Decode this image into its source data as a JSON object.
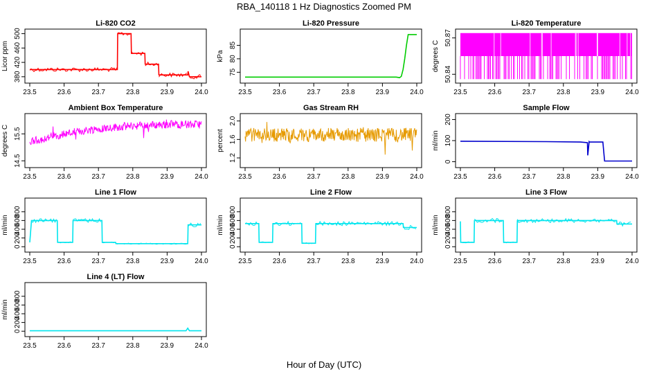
{
  "figure": {
    "title": "RBA_140118  1 Hz Diagnostics Zoomed PM",
    "xlabel": "Hour of Day (UTC)"
  },
  "chart_data": [
    {
      "type": "line",
      "title": "Li-820 CO2",
      "ylabel": "Licor ppm",
      "color": "#ff0000",
      "xlim": [
        23.5,
        24.0
      ],
      "ylim": [
        370,
        505
      ],
      "xticks": [
        "23.5",
        "23.6",
        "23.7",
        "23.8",
        "23.9",
        "24.0"
      ],
      "yticks": [
        {
          "v": 380,
          "label": "380"
        },
        {
          "v": 420,
          "label": "420"
        },
        {
          "v": 460,
          "label": "460"
        },
        {
          "v": 500,
          "label": "500"
        }
      ],
      "style": "step",
      "x": [
        23.5,
        23.755,
        23.756,
        23.795,
        23.796,
        23.835,
        23.836,
        23.875,
        23.876,
        23.96,
        23.961,
        23.965,
        23.966,
        24.0
      ],
      "y": [
        400,
        400,
        500,
        500,
        445,
        445,
        415,
        415,
        385,
        385,
        395,
        380,
        380,
        380
      ]
    },
    {
      "type": "line",
      "title": "Li-820 Pressure",
      "ylabel": "kPa",
      "color": "#00cc00",
      "xlim": [
        23.5,
        24.0
      ],
      "ylim": [
        72,
        90
      ],
      "xticks": [
        "23.5",
        "23.6",
        "23.7",
        "23.8",
        "23.9",
        "24.0"
      ],
      "yticks": [
        {
          "v": 75,
          "label": "75"
        },
        {
          "v": 80,
          "label": "80"
        },
        {
          "v": 85,
          "label": "85"
        }
      ],
      "style": "line",
      "x": [
        23.5,
        23.94,
        23.95,
        23.955,
        23.96,
        23.965,
        23.97,
        23.975,
        24.0
      ],
      "y": [
        73.2,
        73.2,
        73.0,
        73.5,
        76,
        80,
        85,
        89,
        89
      ]
    },
    {
      "type": "line",
      "title": "Li-820 Temperature",
      "ylabel": "degrees C",
      "color": "#ff00ff",
      "xlim": [
        23.5,
        24.0
      ],
      "ylim": [
        50.835,
        50.875
      ],
      "xticks": [
        "23.5",
        "23.6",
        "23.7",
        "23.8",
        "23.9",
        "24.0"
      ],
      "yticks": [
        {
          "v": 50.84,
          "label": "50.84"
        },
        {
          "v": 50.87,
          "label": "50.87"
        }
      ],
      "style": "band",
      "band_low": 50.836,
      "band_high": 50.874,
      "band_mid": 50.855
    },
    {
      "type": "line",
      "title": "Ambient Box Temperature",
      "ylabel": "degrees C",
      "color": "#ff00ff",
      "xlim": [
        23.5,
        24.0
      ],
      "ylim": [
        14.35,
        16.15
      ],
      "xticks": [
        "23.5",
        "23.6",
        "23.7",
        "23.8",
        "23.9",
        "24.0"
      ],
      "yticks": [
        {
          "v": 14.5,
          "label": "14.5"
        },
        {
          "v": 15.5,
          "label": "15.5"
        }
      ],
      "style": "noisy",
      "trend": [
        [
          23.5,
          15.2
        ],
        [
          23.6,
          15.5
        ],
        [
          23.7,
          15.7
        ],
        [
          23.8,
          15.8
        ],
        [
          23.9,
          15.85
        ],
        [
          24.0,
          15.85
        ]
      ],
      "noise": 0.3
    },
    {
      "type": "line",
      "title": "Gas Stream RH",
      "ylabel": "percent",
      "color": "#e69a00",
      "xlim": [
        23.5,
        24.0
      ],
      "ylim": [
        1.05,
        2.1
      ],
      "xticks": [
        "23.5",
        "23.6",
        "23.7",
        "23.8",
        "23.9",
        "24.0"
      ],
      "yticks": [
        {
          "v": 1.2,
          "label": "1.2"
        },
        {
          "v": 1.6,
          "label": "1.6"
        },
        {
          "v": 2.0,
          "label": "2.0"
        }
      ],
      "style": "noisy",
      "trend": [
        [
          23.5,
          1.7
        ],
        [
          24.0,
          1.7
        ]
      ],
      "noise": 0.3
    },
    {
      "type": "line",
      "title": "Sample Flow",
      "ylabel": "ml/min",
      "color": "#0000cc",
      "xlim": [
        23.5,
        24.0
      ],
      "ylim": [
        -15,
        215
      ],
      "xticks": [
        "23.5",
        "23.6",
        "23.7",
        "23.8",
        "23.9",
        "24.0"
      ],
      "yticks": [
        {
          "v": 0,
          "label": "0"
        },
        {
          "v": 100,
          "label": "100"
        },
        {
          "v": 200,
          "label": "200"
        }
      ],
      "style": "line",
      "x": [
        23.5,
        23.75,
        23.85,
        23.87,
        23.871,
        23.875,
        23.876,
        23.915,
        23.92,
        24.0
      ],
      "y": [
        97,
        95,
        93,
        90,
        30,
        95,
        93,
        93,
        3,
        3
      ]
    },
    {
      "type": "line",
      "title": "Line 1 Flow",
      "ylabel": "ml/min",
      "color": "#00e5ee",
      "xlim": [
        23.5,
        24.0
      ],
      "ylim": [
        -60,
        1050
      ],
      "xticks": [
        "23.5",
        "23.6",
        "23.7",
        "23.8",
        "23.9",
        "24.0"
      ],
      "yticks": [
        {
          "v": 0,
          "label": "0"
        },
        {
          "v": 200,
          "label": "200"
        },
        {
          "v": 400,
          "label": "400"
        },
        {
          "v": 600,
          "label": "600"
        },
        {
          "v": 800,
          "label": "800"
        }
      ],
      "style": "step",
      "x": [
        23.5,
        23.505,
        23.58,
        23.581,
        23.625,
        23.626,
        23.71,
        23.711,
        23.75,
        23.751,
        23.96,
        23.961,
        24.0
      ],
      "y": [
        100,
        600,
        600,
        100,
        100,
        600,
        600,
        100,
        100,
        70,
        70,
        500,
        500
      ]
    },
    {
      "type": "line",
      "title": "Line 2 Flow",
      "ylabel": "ml/min",
      "color": "#00e5ee",
      "xlim": [
        23.5,
        24.0
      ],
      "ylim": [
        -60,
        1050
      ],
      "xticks": [
        "23.5",
        "23.6",
        "23.7",
        "23.8",
        "23.9",
        "24.0"
      ],
      "yticks": [
        {
          "v": 0,
          "label": "0"
        },
        {
          "v": 200,
          "label": "200"
        },
        {
          "v": 400,
          "label": "400"
        },
        {
          "v": 600,
          "label": "600"
        },
        {
          "v": 800,
          "label": "800"
        }
      ],
      "style": "step",
      "x": [
        23.5,
        23.54,
        23.541,
        23.58,
        23.581,
        23.665,
        23.666,
        23.705,
        23.706,
        23.96,
        23.961,
        24.0
      ],
      "y": [
        530,
        530,
        100,
        100,
        530,
        530,
        80,
        80,
        530,
        530,
        440,
        440
      ]
    },
    {
      "type": "line",
      "title": "Line 3 Flow",
      "ylabel": "ml/min",
      "color": "#00e5ee",
      "xlim": [
        23.5,
        24.0
      ],
      "ylim": [
        -60,
        1050
      ],
      "xticks": [
        "23.5",
        "23.6",
        "23.7",
        "23.8",
        "23.9",
        "24.0"
      ],
      "yticks": [
        {
          "v": 0,
          "label": "0"
        },
        {
          "v": 200,
          "label": "200"
        },
        {
          "v": 400,
          "label": "400"
        },
        {
          "v": 600,
          "label": "600"
        },
        {
          "v": 800,
          "label": "800"
        }
      ],
      "style": "step",
      "x": [
        23.5,
        23.501,
        23.505,
        23.506,
        23.54,
        23.541,
        23.625,
        23.626,
        23.665,
        23.666,
        23.955,
        23.956,
        24.0
      ],
      "y": [
        580,
        100,
        100,
        100,
        100,
        600,
        600,
        100,
        100,
        600,
        600,
        520,
        520
      ]
    },
    {
      "type": "line",
      "title": "Line 4 (LT) Flow",
      "ylabel": "ml/min",
      "color": "#00e5ee",
      "xlim": [
        23.5,
        24.0
      ],
      "ylim": [
        -60,
        1050
      ],
      "xticks": [
        "23.5",
        "23.6",
        "23.7",
        "23.8",
        "23.9",
        "24.0"
      ],
      "yticks": [
        {
          "v": 0,
          "label": "0"
        },
        {
          "v": 200,
          "label": "200"
        },
        {
          "v": 400,
          "label": "400"
        },
        {
          "v": 600,
          "label": "600"
        },
        {
          "v": 800,
          "label": "800"
        }
      ],
      "style": "line",
      "x": [
        23.5,
        23.955,
        23.96,
        23.965,
        24.0
      ],
      "y": [
        10,
        10,
        70,
        10,
        10
      ]
    }
  ]
}
